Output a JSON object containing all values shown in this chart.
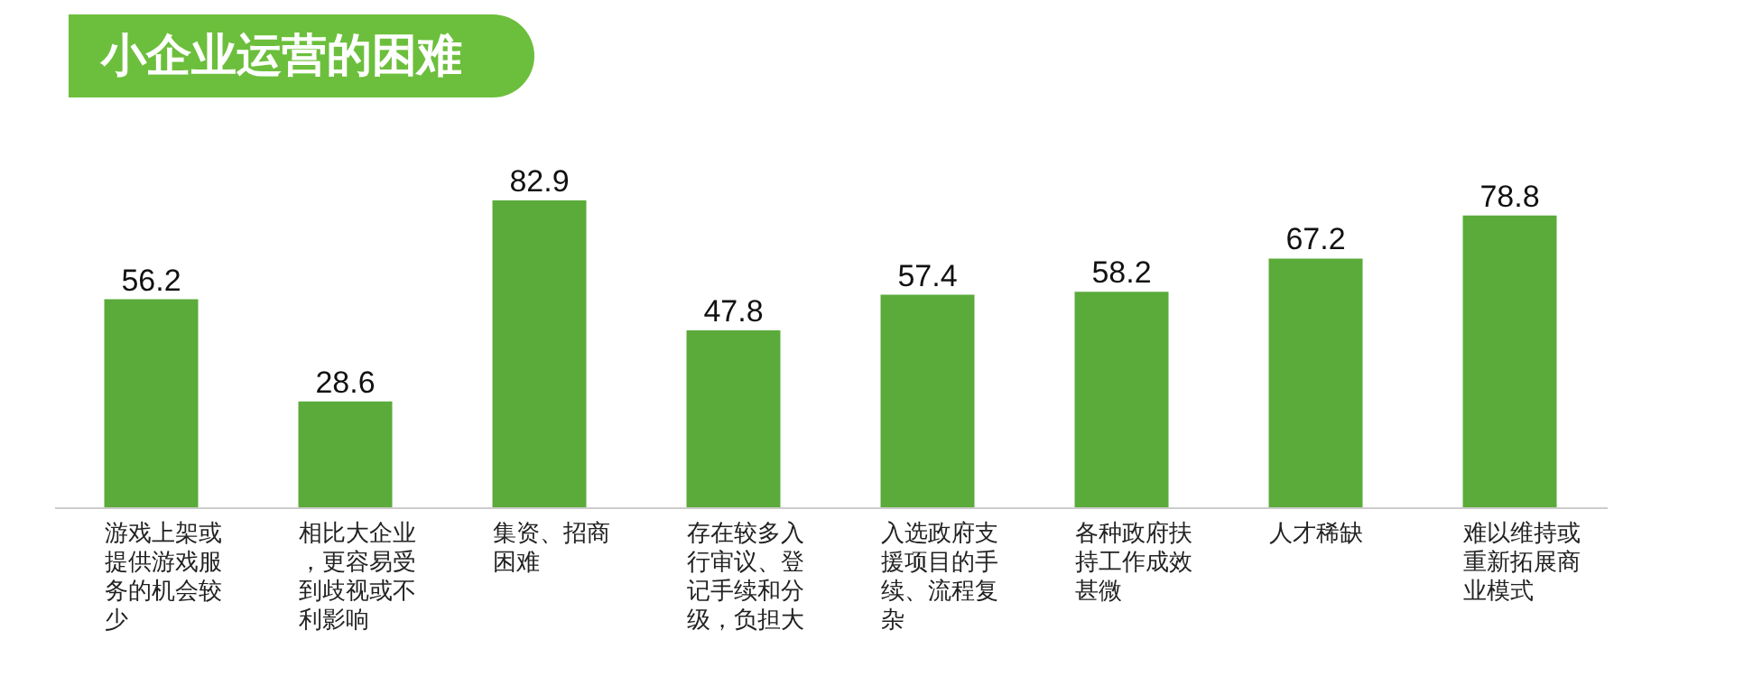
{
  "chart_data": {
    "type": "bar",
    "title": "小企业运营的困难",
    "categories": [
      "游戏上架或提供游戏服务的机会较少",
      "相比大企业，更容易受到歧视或不利影响",
      "集资、招商困难",
      "存在较多入行审议、登记手续和分级，负担大",
      "入选政府支援项目的手续、流程复杂",
      "各种政府扶持工作成效甚微",
      "人才稀缺",
      "难以维持或重新拓展商业模式"
    ],
    "values": [
      56.2,
      28.6,
      82.9,
      47.8,
      57.4,
      58.2,
      67.2,
      78.8
    ],
    "color": "#5aab3a",
    "data_labels": true
  }
}
